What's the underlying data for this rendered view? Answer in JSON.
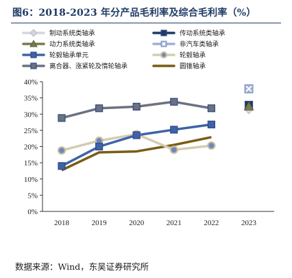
{
  "title": "图6：2018-2023 年分产品毛利率及综合毛利率（%）",
  "source": "数据来源：Wind，东吴证券研究所",
  "chart_data": {
    "type": "line",
    "categories": [
      "2018",
      "2019",
      "2020",
      "2021",
      "2022",
      "2023"
    ],
    "ylim": [
      0,
      40
    ],
    "yticks": [
      "0%",
      "5%",
      "10%",
      "15%",
      "20%",
      "25%",
      "30%",
      "35%",
      "40%"
    ],
    "grid": false,
    "legend": "top",
    "series": [
      {
        "name": "制动系统类轴承",
        "color": "#d4d6df",
        "marker": "diamond",
        "line": true,
        "values": [
          null,
          null,
          null,
          null,
          null,
          31.5
        ]
      },
      {
        "name": "传动系统类轴承",
        "color": "#1f3a64",
        "marker": "square",
        "line": true,
        "values": [
          null,
          null,
          null,
          null,
          null,
          32.8
        ]
      },
      {
        "name": "动力系统类轴承",
        "color": "#7a7a4e",
        "marker": "triangle",
        "line": true,
        "values": [
          null,
          null,
          null,
          null,
          null,
          32.4
        ]
      },
      {
        "name": "非汽车类轴承",
        "color": "#9fb0d6",
        "marker": "x-square",
        "line": true,
        "values": [
          null,
          null,
          null,
          null,
          null,
          37.8
        ]
      },
      {
        "name": "轮毂轴承单元",
        "color": "#3f62a8",
        "marker": "square",
        "line": true,
        "values": [
          14.0,
          20.0,
          23.5,
          25.2,
          26.8,
          null
        ]
      },
      {
        "name": "轮毂轴承",
        "color": "#d3cdb0",
        "marker": "circle",
        "line": true,
        "values": [
          18.8,
          21.8,
          23.8,
          19.0,
          20.3,
          null
        ]
      },
      {
        "name": "离合器、涨紧轮及惰轮轴承",
        "color": "#6d7180",
        "marker": "square",
        "line": true,
        "values": [
          28.8,
          31.8,
          32.3,
          33.8,
          31.8,
          null
        ]
      },
      {
        "name": "圆锥轴承",
        "color": "#7a5c14",
        "marker": "none",
        "line": true,
        "values": [
          12.7,
          18.2,
          18.5,
          20.5,
          22.9,
          null
        ]
      }
    ]
  }
}
